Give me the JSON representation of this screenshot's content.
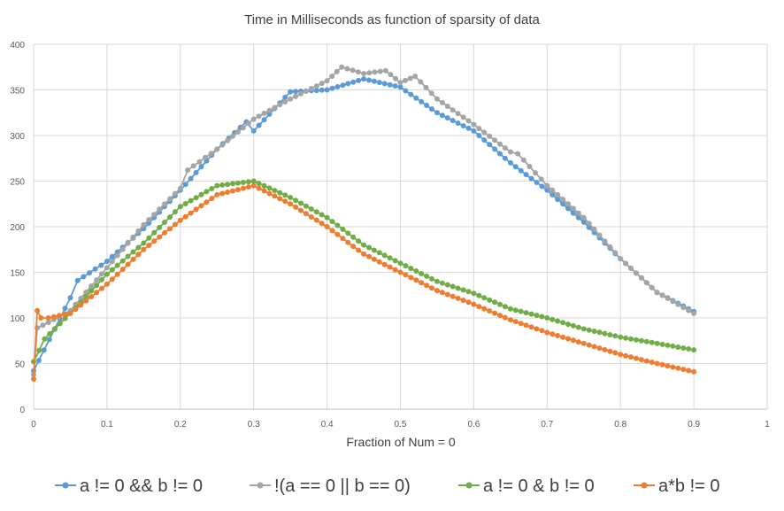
{
  "chart_data": {
    "type": "line",
    "title": "Time in Milliseconds as function of sparsity of data",
    "xlabel": "Fraction of Num = 0",
    "ylabel": "",
    "xlim": [
      0,
      1
    ],
    "ylim": [
      0,
      400
    ],
    "xticks": [
      "0",
      "0.1",
      "0.2",
      "0.3",
      "0.4",
      "0.5",
      "0.6",
      "0.7",
      "0.8",
      "0.9",
      "1"
    ],
    "yticks": [
      "0",
      "50",
      "100",
      "150",
      "200",
      "250",
      "300",
      "350",
      "400"
    ],
    "grid": true,
    "legend_position": "bottom",
    "series": [
      {
        "name": "a != 0 && b != 0",
        "color": "#5B9BD5",
        "x": [
          0,
          0.05,
          0.06,
          0.1,
          0.15,
          0.2,
          0.25,
          0.29,
          0.3,
          0.35,
          0.4,
          0.45,
          0.5,
          0.55,
          0.6,
          0.65,
          0.7,
          0.75,
          0.8,
          0.85,
          0.9
        ],
        "y": [
          42,
          122,
          141,
          162,
          198,
          240,
          285,
          315,
          305,
          348,
          350,
          362,
          353,
          325,
          305,
          270,
          240,
          205,
          165,
          128,
          107
        ]
      },
      {
        "name": "!(a == 0 || b == 0)",
        "color": "#A5A5A5",
        "x": [
          0,
          0.005,
          0.02,
          0.05,
          0.1,
          0.15,
          0.2,
          0.21,
          0.25,
          0.3,
          0.35,
          0.4,
          0.42,
          0.45,
          0.48,
          0.5,
          0.52,
          0.55,
          0.6,
          0.65,
          0.66,
          0.7,
          0.75,
          0.8,
          0.85,
          0.9
        ],
        "y": [
          38,
          89,
          95,
          108,
          155,
          202,
          242,
          262,
          285,
          318,
          340,
          360,
          375,
          368,
          371,
          358,
          365,
          340,
          312,
          282,
          280,
          245,
          210,
          165,
          128,
          105
        ]
      },
      {
        "name": "a != 0 & b != 0",
        "color": "#70AD47",
        "x": [
          0,
          0.015,
          0.05,
          0.1,
          0.15,
          0.2,
          0.25,
          0.3,
          0.35,
          0.4,
          0.45,
          0.5,
          0.55,
          0.6,
          0.65,
          0.7,
          0.75,
          0.8,
          0.85,
          0.9
        ],
        "y": [
          52,
          77,
          105,
          148,
          182,
          222,
          245,
          250,
          232,
          210,
          180,
          160,
          140,
          127,
          110,
          100,
          88,
          79,
          72,
          65
        ]
      },
      {
        "name": "a*b != 0",
        "color": "#ED7D31",
        "x": [
          0,
          0.005,
          0.01,
          0.02,
          0.05,
          0.1,
          0.15,
          0.2,
          0.25,
          0.3,
          0.35,
          0.4,
          0.45,
          0.5,
          0.55,
          0.6,
          0.65,
          0.7,
          0.75,
          0.8,
          0.85,
          0.9
        ],
        "y": [
          33,
          108,
          100,
          100,
          105,
          137,
          175,
          207,
          235,
          245,
          225,
          200,
          170,
          150,
          130,
          115,
          98,
          84,
          72,
          60,
          50,
          41
        ]
      }
    ]
  }
}
